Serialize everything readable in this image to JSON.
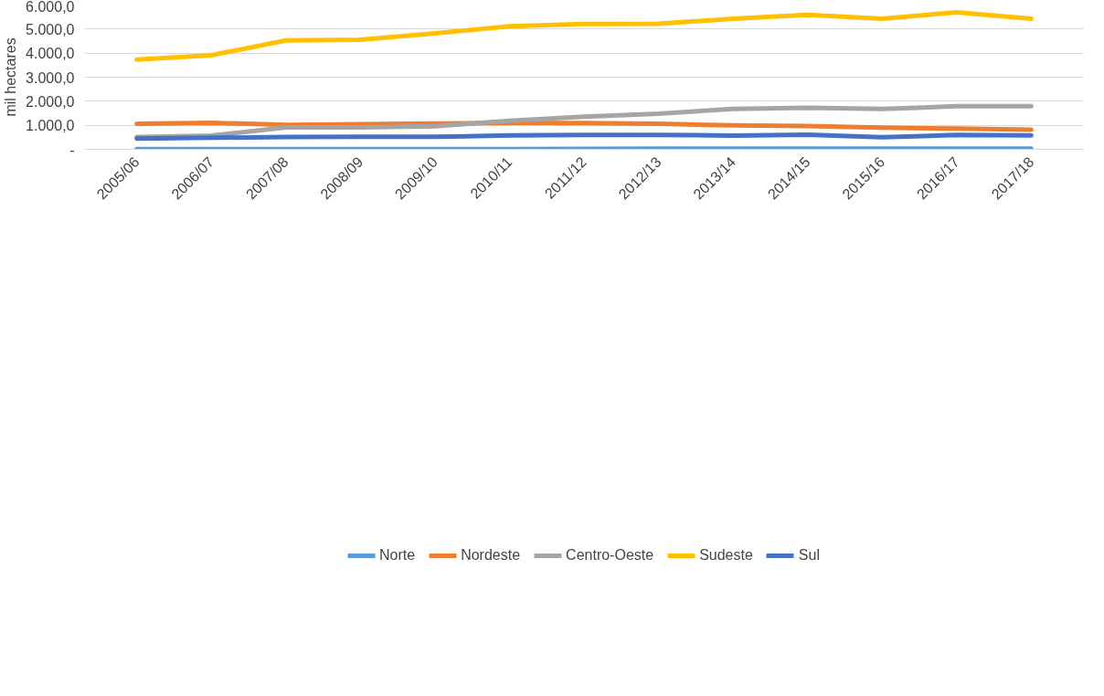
{
  "chart_data": {
    "type": "line",
    "ylabel": "mil hectares",
    "categories": [
      "2005/06",
      "2006/07",
      "2007/08",
      "2008/09",
      "2009/10",
      "2010/11",
      "2011/12",
      "2012/13",
      "2013/14",
      "2014/15",
      "2015/16",
      "2016/17",
      "2017/18"
    ],
    "series": [
      {
        "name": "Norte",
        "color": "#5b9bd5",
        "values": [
          10,
          10,
          10,
          10,
          10,
          10,
          20,
          30,
          30,
          30,
          30,
          30,
          30
        ]
      },
      {
        "name": "Nordeste",
        "color": "#ed7d31",
        "values": [
          1060,
          1100,
          1020,
          1040,
          1070,
          1100,
          1090,
          1060,
          1000,
          970,
          900,
          860,
          820
        ]
      },
      {
        "name": "Centro-Oeste",
        "color": "#a5a5a5",
        "values": [
          510,
          570,
          910,
          910,
          960,
          1190,
          1360,
          1480,
          1680,
          1730,
          1680,
          1790,
          1790
        ]
      },
      {
        "name": "Sudeste",
        "color": "#ffc000",
        "values": [
          3730,
          3910,
          4530,
          4560,
          4820,
          5120,
          5210,
          5220,
          5430,
          5590,
          5430,
          5700,
          5430
        ]
      },
      {
        "name": "Sul",
        "color": "#4472c4",
        "values": [
          450,
          480,
          510,
          520,
          520,
          580,
          600,
          600,
          570,
          610,
          500,
          600,
          580
        ]
      }
    ],
    "ylim": [
      0,
      6000
    ],
    "yticks": [
      {
        "value": 0,
        "label": "-"
      },
      {
        "value": 1000,
        "label": "1.000,0"
      },
      {
        "value": 2000,
        "label": "2.000,0"
      },
      {
        "value": 3000,
        "label": "3.000,0"
      },
      {
        "value": 4000,
        "label": "4.000,0"
      },
      {
        "value": 5000,
        "label": "5.000,0"
      },
      {
        "value": 6000,
        "label": "6.000,0"
      }
    ],
    "grid": "y",
    "legend": "bottom",
    "marker": "none",
    "line_style": "solid"
  }
}
